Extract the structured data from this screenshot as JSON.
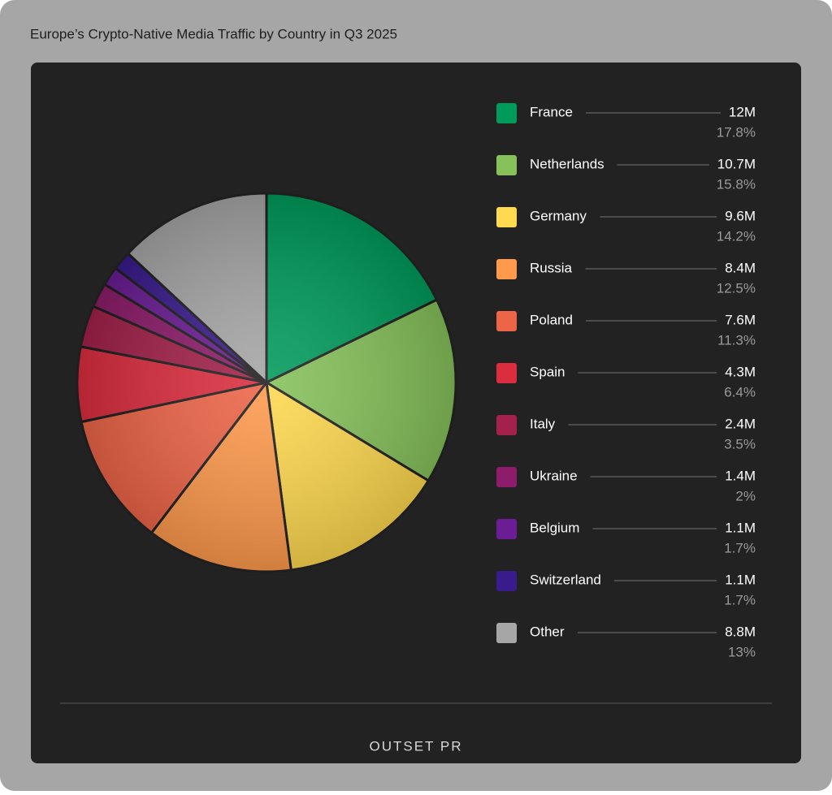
{
  "chart_data": {
    "type": "pie",
    "title": "Europe’s Crypto-Native Media Traffic by Country in Q3 2025",
    "categories": [
      "France",
      "Netherlands",
      "Germany",
      "Russia",
      "Poland",
      "Spain",
      "Italy",
      "Ukraine",
      "Belgium",
      "Switzerland",
      "Other"
    ],
    "values": [
      12,
      10.7,
      9.6,
      8.4,
      7.6,
      4.3,
      2.4,
      1.4,
      1.1,
      1.1,
      8.8
    ],
    "value_labels": [
      "12M",
      "10.7M",
      "9.6M",
      "8.4M",
      "7.6M",
      "4.3M",
      "2.4M",
      "1.4M",
      "1.1M",
      "1.1M",
      "8.8M"
    ],
    "share_labels": [
      "17.8%",
      "15.8%",
      "14.2%",
      "12.5%",
      "11.3%",
      "6.4%",
      "3.5%",
      "2%",
      "1.7%",
      "1.7%",
      "13%"
    ],
    "colors": [
      "#009b5b",
      "#86c15a",
      "#ffd94f",
      "#ff9a4d",
      "#ed6547",
      "#dc2d3f",
      "#a3214a",
      "#8d1c6a",
      "#6b1d95",
      "#3a1b8c",
      "#a6a6a6"
    ],
    "footer": "OUTSET PR"
  }
}
